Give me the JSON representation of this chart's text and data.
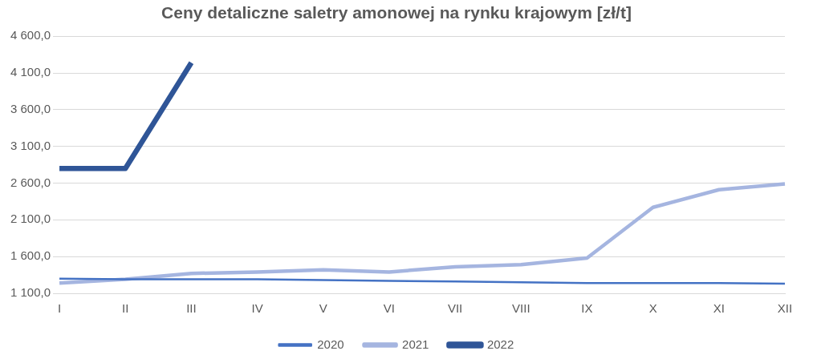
{
  "chart_data": {
    "type": "line",
    "title": "Ceny detaliczne saletry amonowej na rynku krajowym [zł/t]",
    "categories": [
      "I",
      "II",
      "III",
      "IV",
      "V",
      "VI",
      "VII",
      "VIII",
      "IX",
      "X",
      "XI",
      "XII"
    ],
    "series": [
      {
        "name": "2020",
        "color": "#4472c4",
        "values": [
          1300,
          1290,
          1290,
          1290,
          1280,
          1270,
          1260,
          1250,
          1240,
          1240,
          1240,
          1230
        ]
      },
      {
        "name": "2021",
        "color": "#a5b5e0",
        "values": [
          1240,
          1290,
          1370,
          1390,
          1420,
          1390,
          1460,
          1490,
          1580,
          2270,
          2510,
          2590
        ]
      },
      {
        "name": "2022",
        "color": "#2f5597",
        "values": [
          2800,
          2800,
          4240,
          null,
          null,
          null,
          null,
          null,
          null,
          null,
          null,
          null
        ]
      }
    ],
    "ylim": [
      1100,
      4600
    ],
    "yticks": [
      {
        "value": 1100,
        "label": "1 100,0"
      },
      {
        "value": 1600,
        "label": "1 600,0"
      },
      {
        "value": 2100,
        "label": "2 100,0"
      },
      {
        "value": 2600,
        "label": "2 600,0"
      },
      {
        "value": 3100,
        "label": "3 100,0"
      },
      {
        "value": 3600,
        "label": "3 600,0"
      },
      {
        "value": 4100,
        "label": "4 100,0"
      },
      {
        "value": 4600,
        "label": "4 600,0"
      }
    ],
    "grid": "y",
    "legend": "bottom",
    "marker": "none",
    "line_style": "solid"
  }
}
